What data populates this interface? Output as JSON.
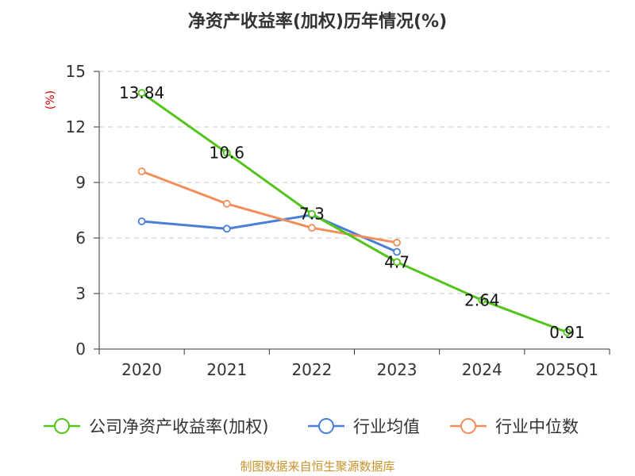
{
  "chart_data": {
    "type": "line",
    "title": "净资产收益率(加权)历年情况(%)",
    "unit_label": "(%)",
    "categories": [
      "2020",
      "2021",
      "2022",
      "2023",
      "2024",
      "2025Q1"
    ],
    "ylim": [
      0,
      15
    ],
    "yticks": [
      0,
      3,
      6,
      9,
      12,
      15
    ],
    "grid": true,
    "legend_position": "bottom",
    "series": [
      {
        "name": "公司净资产收益率(加权)",
        "color": "#52c41a",
        "values": [
          13.84,
          10.6,
          7.3,
          4.7,
          2.64,
          0.91
        ],
        "labels": [
          "13.84",
          "10.6",
          "7.3",
          "4.7",
          "2.64",
          "0.91"
        ]
      },
      {
        "name": "行业均值",
        "color": "#4a7fd8",
        "values": [
          6.9,
          6.5,
          7.25,
          5.25,
          null,
          null
        ]
      },
      {
        "name": "行业中位数",
        "color": "#f28e5a",
        "values": [
          9.6,
          7.85,
          6.55,
          5.75,
          null,
          null
        ]
      }
    ]
  },
  "source": "制图数据来自恒生聚源数据库"
}
